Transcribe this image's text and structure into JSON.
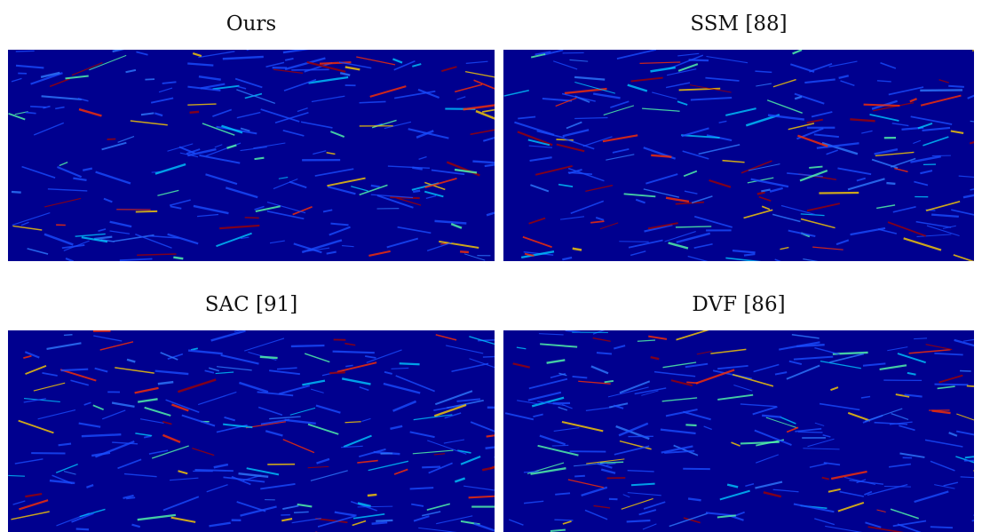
{
  "figure": {
    "panels": [
      {
        "label": "Ours"
      },
      {
        "label": "SSM [88]"
      },
      {
        "label": "SAC [91]"
      },
      {
        "label": "DVF [86]"
      }
    ]
  }
}
